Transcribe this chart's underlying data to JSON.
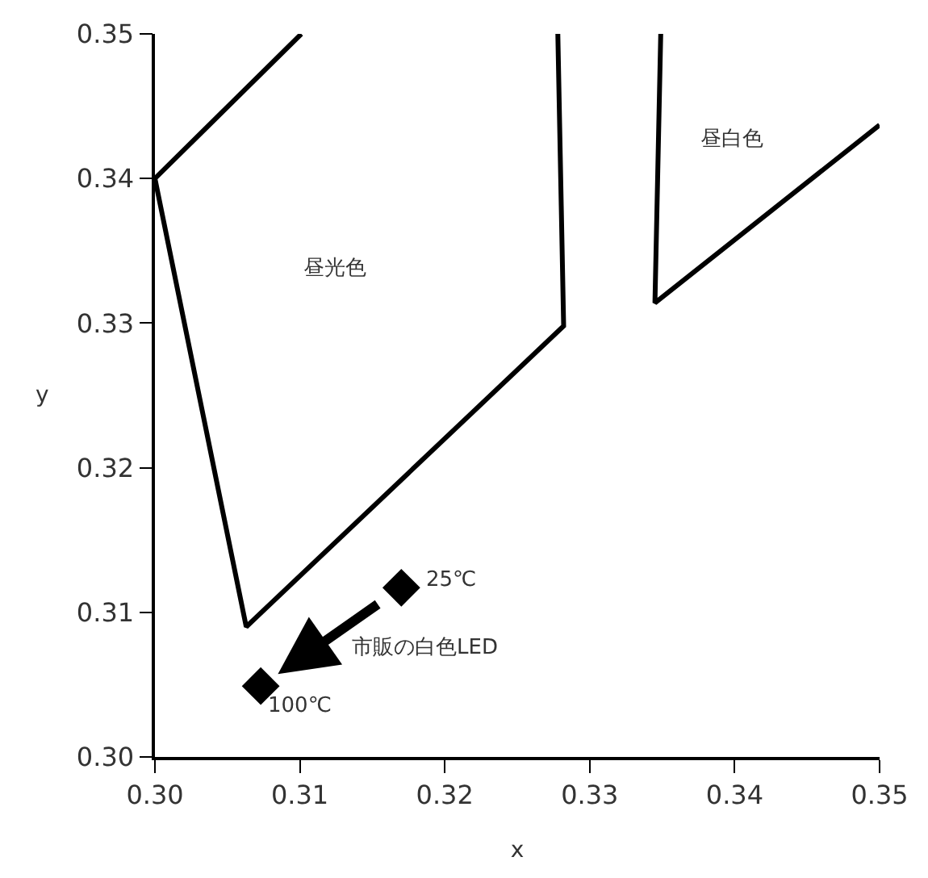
{
  "chart_data": {
    "type": "line",
    "xlabel": "x",
    "ylabel": "y",
    "xlim": [
      0.3,
      0.35
    ],
    "xticks": [
      {
        "value": 0.3,
        "label": "0.30"
      },
      0.31,
      0.32,
      0.33,
      0.34,
      0.35
    ],
    "ylim": [
      0.3,
      0.35
    ],
    "yticks": [
      {
        "value": 0.3,
        "label": "0.30"
      },
      0.31,
      0.32,
      0.33,
      0.34,
      0.35
    ],
    "marker": "none",
    "line_style": "solid",
    "series": [
      {
        "color": "#000000",
        "x": [
          0.3101,
          0.3,
          0.3063,
          0.3282,
          0.3278
        ],
        "values": [
          0.35,
          0.34,
          0.309,
          0.3298,
          0.35
        ]
      },
      {
        "color": "#000000",
        "x": [
          0.3349,
          0.3345,
          0.35
        ],
        "values": [
          0.35,
          0.3314,
          0.3437
        ]
      },
      {
        "type": "scatter",
        "marker": "diamond",
        "color": "#000000",
        "x": [
          0.3073,
          0.317
        ],
        "values": [
          0.3049,
          0.3117
        ]
      }
    ],
    "annotations": [
      "昼光色",
      "昼白色",
      {
        "text": "25℃",
        "x": 0.3185,
        "y": 0.3122
      },
      {
        "text": "100℃",
        "x": 0.3076,
        "y": 0.3035
      },
      "市販の白色LED"
    ]
  }
}
